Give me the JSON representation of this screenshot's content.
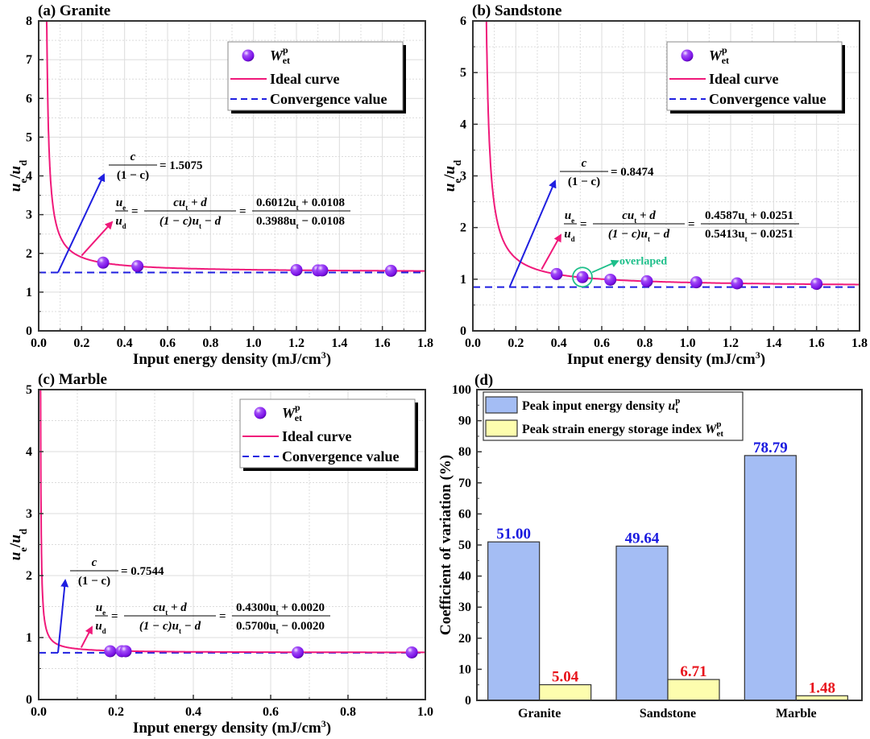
{
  "chart_data": [
    {
      "type": "scatter",
      "panel": "a",
      "title": "(a) Granite",
      "xlabel": "Input energy density (mJ/cm",
      "xlabel_sup": "3",
      "xlabel_end": ")",
      "ylabel_main": "u",
      "ylabel_sub1": "e",
      "ylabel_slash": "/u",
      "ylabel_sub2": "d",
      "xlim": [
        0,
        1.8
      ],
      "ylim": [
        0,
        8
      ],
      "xticks": [
        0.0,
        0.2,
        0.4,
        0.6,
        0.8,
        1.0,
        1.2,
        1.4,
        1.6,
        1.8
      ],
      "xtick_labels": [
        "0.0",
        "0.2",
        "0.4",
        "0.6",
        "0.8",
        "1.0",
        "1.2",
        "1.4",
        "1.6",
        "1.8"
      ],
      "yticks": [
        0,
        1,
        2,
        3,
        4,
        5,
        6,
        7,
        8
      ],
      "ytick_labels": [
        "0",
        "1",
        "2",
        "3",
        "4",
        "5",
        "6",
        "7",
        "8"
      ],
      "grid": true,
      "legend_position": "top-right",
      "legend": [
        "W",
        "Ideal curve",
        "Convergence value"
      ],
      "legend_sup": "p",
      "legend_sub": "et",
      "points": {
        "x": [
          0.3,
          0.46,
          1.2,
          1.3,
          1.32,
          1.64
        ],
        "y": [
          1.76,
          1.67,
          1.57,
          1.56,
          1.56,
          1.55
        ]
      },
      "curve": {
        "c_num": 0.6012,
        "d": 0.0108,
        "den_coef": 0.3988
      },
      "convergence": 1.5075,
      "eq1_value": "= 1.5075",
      "eq2_num": "0.6012u",
      "eq2_num_tail": " + 0.0108",
      "eq2_den": "0.3988u",
      "eq2_den_tail": " − 0.0108",
      "annotation": null
    },
    {
      "type": "scatter",
      "panel": "b",
      "title": "(b) Sandstone",
      "xlabel": "Input energy density (mJ/cm",
      "xlabel_sup": "3",
      "xlabel_end": ")",
      "ylabel_main": "u",
      "ylabel_sub1": "e",
      "ylabel_slash": "/u",
      "ylabel_sub2": "d",
      "xlim": [
        0,
        1.8
      ],
      "ylim": [
        0,
        6
      ],
      "xticks": [
        0.0,
        0.2,
        0.4,
        0.6,
        0.8,
        1.0,
        1.2,
        1.4,
        1.6,
        1.8
      ],
      "xtick_labels": [
        "0.0",
        "0.2",
        "0.4",
        "0.6",
        "0.8",
        "1.0",
        "1.2",
        "1.4",
        "1.6",
        "1.8"
      ],
      "yticks": [
        0,
        1,
        2,
        3,
        4,
        5,
        6
      ],
      "ytick_labels": [
        "0",
        "1",
        "2",
        "3",
        "4",
        "5",
        "6"
      ],
      "grid": true,
      "legend_position": "top-right",
      "legend": [
        "W",
        "Ideal curve",
        "Convergence value"
      ],
      "legend_sup": "p",
      "legend_sub": "et",
      "points": {
        "x": [
          0.39,
          0.51,
          0.64,
          0.81,
          1.04,
          1.23,
          1.6
        ],
        "y": [
          1.1,
          1.04,
          0.99,
          0.96,
          0.94,
          0.92,
          0.91
        ]
      },
      "curve": {
        "c_num": 0.4587,
        "d": 0.0251,
        "den_coef": 0.5413
      },
      "convergence": 0.8474,
      "eq1_value": "= 0.8474",
      "eq2_num": "0.4587u",
      "eq2_num_tail": " + 0.0251",
      "eq2_den": "0.5413u",
      "eq2_den_tail": " − 0.0251",
      "annotation": {
        "text": "overlaped",
        "x": 0.51,
        "y": 1.04,
        "color": "#1dbf8a"
      }
    },
    {
      "type": "scatter",
      "panel": "c",
      "title": "(c) Marble",
      "xlabel": "Input energy density (mJ/cm",
      "xlabel_sup": "3",
      "xlabel_end": ")",
      "ylabel_main": "u",
      "ylabel_sub1": "e",
      "ylabel_slash": "/u",
      "ylabel_sub2": "d",
      "xlim": [
        0,
        1.0
      ],
      "ylim": [
        0,
        5
      ],
      "xticks": [
        0.0,
        0.2,
        0.4,
        0.6,
        0.8,
        1.0
      ],
      "xtick_labels": [
        "0.0",
        "0.2",
        "0.4",
        "0.6",
        "0.8",
        "1.0"
      ],
      "yticks": [
        0,
        1,
        2,
        3,
        4,
        5
      ],
      "ytick_labels": [
        "0",
        "1",
        "2",
        "3",
        "4",
        "5"
      ],
      "grid": true,
      "legend_position": "top-right",
      "legend": [
        "W",
        "Ideal curve",
        "Convergence value"
      ],
      "legend_sup": "p",
      "legend_sub": "et",
      "points": {
        "x": [
          0.185,
          0.215,
          0.225,
          0.67,
          0.965
        ],
        "y": [
          0.78,
          0.78,
          0.78,
          0.76,
          0.76
        ]
      },
      "curve": {
        "c_num": 0.43,
        "d": 0.002,
        "den_coef": 0.57
      },
      "convergence": 0.7544,
      "eq1_value": "= 0.7544",
      "eq2_num": "0.4300u",
      "eq2_num_tail": " + 0.0020",
      "eq2_den": "0.5700u",
      "eq2_den_tail": " − 0.0020",
      "annotation": null
    },
    {
      "type": "bar",
      "panel": "d",
      "title": "(d)",
      "categories": [
        "Granite",
        "Sandstone",
        "Marble"
      ],
      "series": [
        {
          "name": "Peak input energy density u",
          "sup": "p",
          "sub": "t",
          "values": [
            51.0,
            49.64,
            78.79
          ],
          "labels": [
            "51.00",
            "49.64",
            "78.79"
          ],
          "color": "#a4bdf4",
          "label_color": "#1a1adf"
        },
        {
          "name": "Peak strain energy storage index W",
          "sup": "p",
          "sub": "et",
          "values": [
            5.04,
            6.71,
            1.48
          ],
          "labels": [
            "5.04",
            "6.71",
            "1.48"
          ],
          "color": "#fdfdae",
          "label_color": "#e8141c"
        }
      ],
      "xlabel": "",
      "ylabel": "Coefficient of variation (%)",
      "ylim": [
        0,
        100
      ],
      "yticks": [
        0,
        10,
        20,
        30,
        40,
        50,
        60,
        70,
        80,
        90,
        100
      ],
      "ytick_labels": [
        "0",
        "10",
        "20",
        "30",
        "40",
        "50",
        "60",
        "70",
        "80",
        "90",
        "100"
      ],
      "grid": false,
      "legend_position": "top-left"
    }
  ],
  "formula": {
    "c": "c",
    "one_minus_c": "(1 − c)",
    "ue": "u",
    "ue_sub": "e",
    "ud": "u",
    "ud_sub": "d",
    "general_num": "cu",
    "general_num_tail": " + d",
    "general_den": "(1 − c)u",
    "general_den_tail": " − d",
    "t_sub": "t",
    "equals": "="
  },
  "colors": {
    "curve": "#f0197a",
    "convergence": "#1f1fe0",
    "marker": "#8a14f0",
    "marker_hi": "#e6c8ff",
    "arrow_blue": "#1f1fe0",
    "arrow_pink": "#f0197a",
    "grid": "#dcdcdc"
  }
}
